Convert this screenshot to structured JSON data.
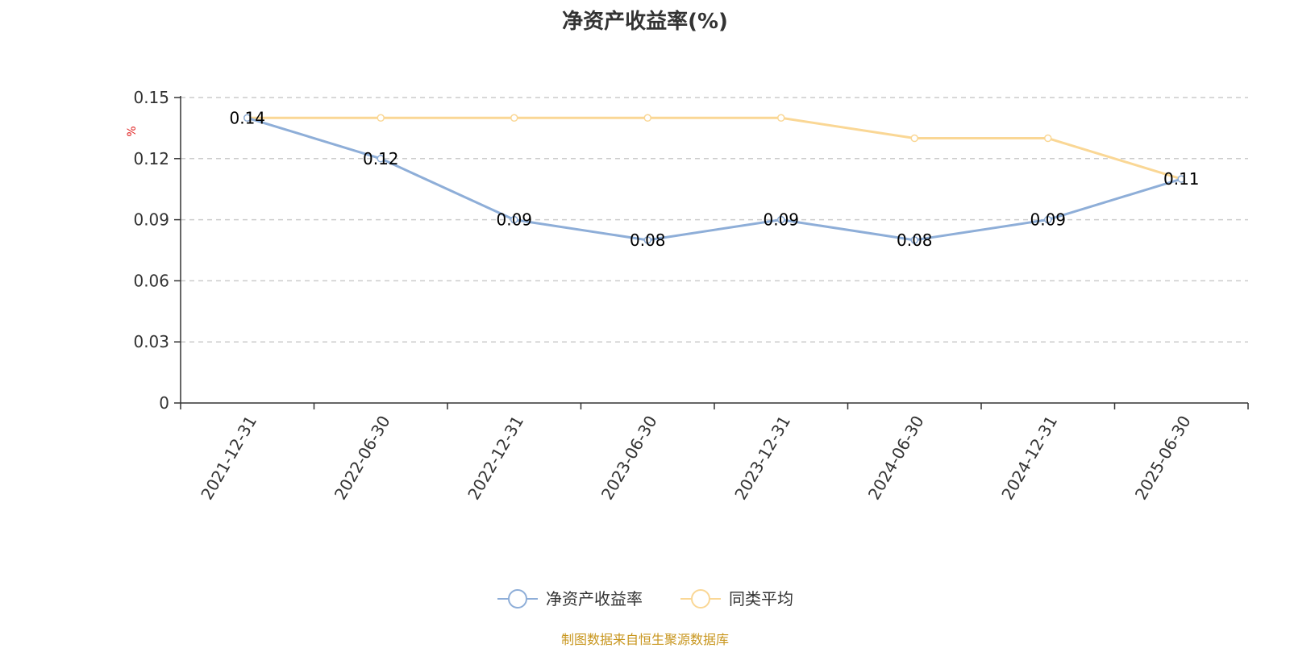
{
  "colors": {
    "series1": "#8eaed8",
    "series2": "#fad795",
    "unit": "#e02020",
    "source": "#c8961e",
    "grid": "#cccccc",
    "axis": "#333333"
  },
  "source_text": "制图数据来自恒生聚源数据库",
  "chart_data": {
    "type": "line",
    "title": "净资产收益率(%)",
    "ylabel": "%",
    "xlabel": "",
    "ylim": [
      0,
      0.15
    ],
    "yticks": [
      0,
      0.03,
      0.06,
      0.09,
      0.12,
      0.15
    ],
    "ytick_labels": [
      "0",
      "0.03",
      "0.06",
      "0.09",
      "0.12",
      "0.15"
    ],
    "grid": true,
    "legend_position": "bottom-center",
    "categories": [
      "2021-12-31",
      "2022-06-30",
      "2022-12-31",
      "2023-06-30",
      "2023-12-31",
      "2024-06-30",
      "2024-12-31",
      "2025-06-30"
    ],
    "series": [
      {
        "name": "净资产收益率",
        "values": [
          0.14,
          0.12,
          0.09,
          0.08,
          0.09,
          0.08,
          0.09,
          0.11
        ],
        "data_labels": [
          "0.14",
          "0.12",
          "0.09",
          "0.08",
          "0.09",
          "0.08",
          "0.09",
          "0.11"
        ],
        "show_labels": true
      },
      {
        "name": "同类平均",
        "values": [
          0.14,
          0.14,
          0.14,
          0.14,
          0.14,
          0.13,
          0.13,
          0.11
        ],
        "show_labels": false
      }
    ]
  }
}
